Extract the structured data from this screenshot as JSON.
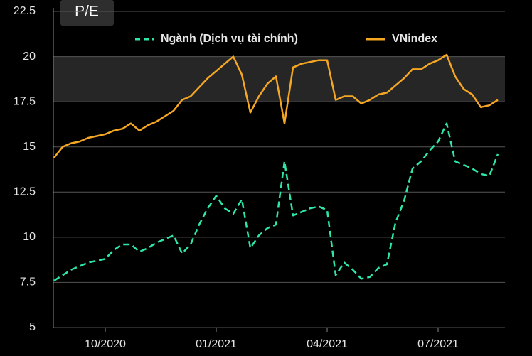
{
  "chart_data": {
    "type": "line",
    "title": "P/E",
    "categories": [
      null,
      null,
      null,
      null,
      null,
      null,
      "10/2020",
      null,
      null,
      null,
      null,
      null,
      null,
      null,
      null,
      null,
      null,
      null,
      null,
      "01/2021",
      null,
      null,
      null,
      null,
      null,
      null,
      null,
      null,
      null,
      null,
      null,
      null,
      "04/2021",
      null,
      null,
      null,
      null,
      null,
      null,
      null,
      null,
      null,
      null,
      null,
      null,
      "07/2021",
      null,
      null,
      null,
      null,
      null,
      null,
      null
    ],
    "series": [
      {
        "name": "Ngành (Dịch vụ tài chính)",
        "color": "#2ee6a6",
        "dashed": true,
        "values": [
          7.6,
          7.9,
          8.2,
          8.4,
          8.6,
          8.7,
          8.8,
          9.3,
          9.6,
          9.6,
          9.2,
          9.4,
          9.7,
          9.9,
          10.1,
          9.1,
          9.6,
          10.7,
          11.6,
          12.3,
          11.6,
          11.3,
          12.1,
          9.4,
          10.1,
          10.5,
          10.7,
          14.2,
          11.2,
          11.4,
          11.6,
          11.7,
          11.5,
          7.9,
          8.6,
          8.2,
          7.7,
          7.8,
          8.3,
          8.5,
          10.8,
          12.0,
          13.8,
          14.2,
          14.8,
          15.3,
          16.3,
          14.2,
          14.0,
          13.8,
          13.5,
          13.4,
          14.6
        ]
      },
      {
        "name": "VNindex",
        "color": "#f5a623",
        "dashed": false,
        "values": [
          14.4,
          15.0,
          15.2,
          15.3,
          15.5,
          15.6,
          15.7,
          15.9,
          16.0,
          16.3,
          15.9,
          16.2,
          16.4,
          16.7,
          17.0,
          17.6,
          17.8,
          18.3,
          18.8,
          19.2,
          19.6,
          20.0,
          19.0,
          16.9,
          17.8,
          18.5,
          18.9,
          16.3,
          19.4,
          19.6,
          19.7,
          19.8,
          19.8,
          17.6,
          17.8,
          17.8,
          17.4,
          17.6,
          17.9,
          18.0,
          18.4,
          18.8,
          19.3,
          19.3,
          19.6,
          19.8,
          20.1,
          18.9,
          18.2,
          17.9,
          17.2,
          17.3,
          17.6
        ]
      }
    ],
    "ylim": [
      5,
      22.5
    ],
    "yticks": [
      5,
      7.5,
      10,
      12.5,
      15,
      17.5,
      20,
      22.5
    ],
    "highlight_band": [
      17.5,
      20
    ],
    "grid": true
  }
}
